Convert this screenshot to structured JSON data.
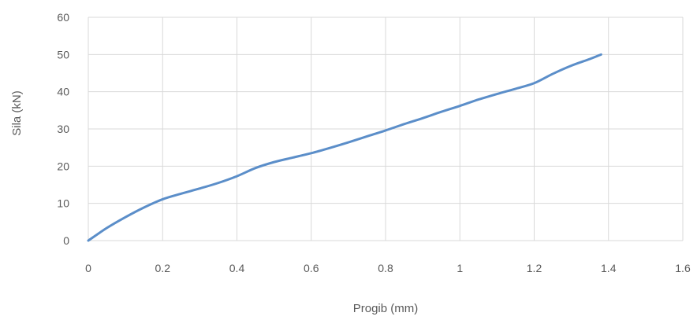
{
  "chart_data": {
    "type": "line",
    "title": "",
    "xlabel": "Progib (mm)",
    "ylabel": "Sila (kN)",
    "xlim": [
      0,
      1.6
    ],
    "ylim": [
      0,
      60
    ],
    "x_ticks": [
      "0",
      "0.2",
      "0.4",
      "0.6",
      "0.8",
      "1",
      "1.2",
      "1.4",
      "1.6"
    ],
    "y_ticks": [
      "0",
      "10",
      "20",
      "30",
      "40",
      "50",
      "60"
    ],
    "grid": true,
    "legend": "none",
    "series": [
      {
        "color": "#5b8ec9",
        "x": [
          0,
          0.05,
          0.1,
          0.15,
          0.2,
          0.25,
          0.3,
          0.35,
          0.4,
          0.45,
          0.5,
          0.55,
          0.6,
          0.65,
          0.7,
          0.75,
          0.8,
          0.85,
          0.9,
          0.95,
          1.0,
          1.05,
          1.1,
          1.15,
          1.2,
          1.25,
          1.3,
          1.35,
          1.38
        ],
        "y": [
          0,
          3.4,
          6.3,
          8.9,
          11.1,
          12.6,
          14.0,
          15.5,
          17.3,
          19.5,
          21.1,
          22.3,
          23.5,
          24.9,
          26.4,
          28.0,
          29.6,
          31.3,
          32.9,
          34.6,
          36.2,
          37.9,
          39.4,
          40.8,
          42.3,
          44.8,
          47.0,
          48.8,
          50.0
        ]
      }
    ]
  }
}
